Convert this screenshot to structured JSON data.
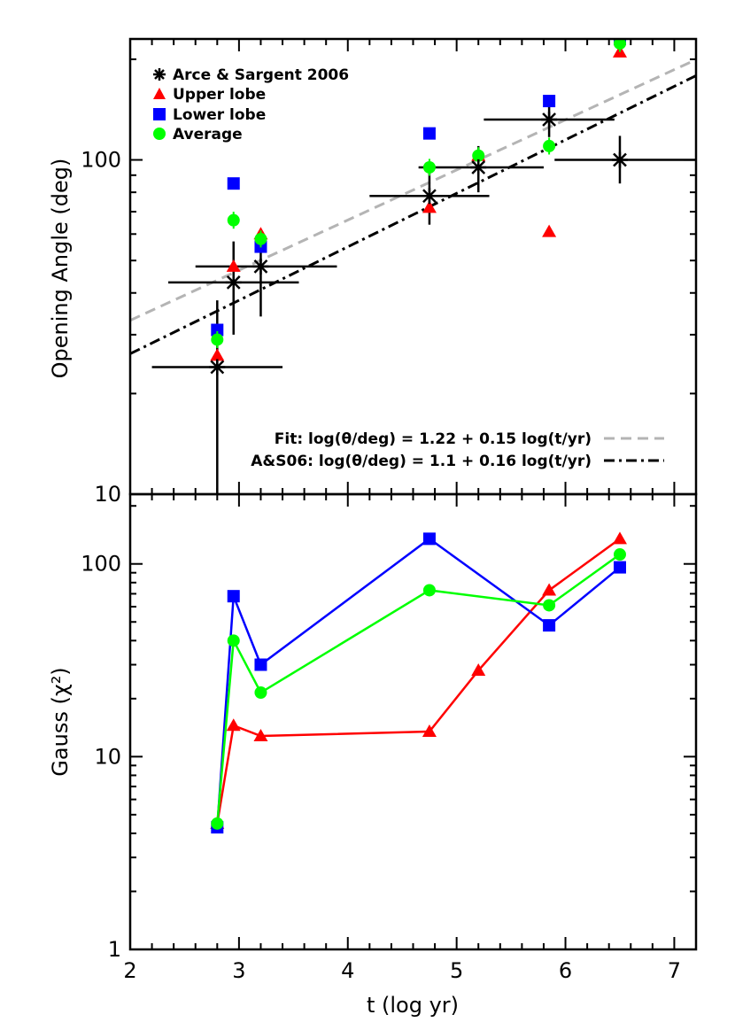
{
  "chart_data": [
    {
      "type": "scatter",
      "title": "",
      "xlabel": "",
      "ylabel": "Opening Angle (deg)",
      "xlim": [
        2,
        7.2
      ],
      "ylim": [
        10,
        230
      ],
      "yscale": "log",
      "ytick_labels": [
        "10",
        "100"
      ],
      "grid": false,
      "legend_position": "top-left",
      "colors": {
        "arce": "#000000",
        "upper": "#ff0000",
        "lower": "#0000ff",
        "average": "#00ff00",
        "fit": "#b4b4b4",
        "as06": "#000000"
      },
      "series": [
        {
          "name": "Arce & Sargent 2006",
          "marker": "asterisk",
          "points": [
            {
              "x": 2.8,
              "y": 24,
              "xerr": [
                2.2,
                3.4
              ],
              "yerr": [
                10,
                38
              ]
            },
            {
              "x": 2.95,
              "y": 43,
              "xerr": [
                2.35,
                3.55
              ],
              "yerr": [
                30,
                57
              ]
            },
            {
              "x": 3.2,
              "y": 48,
              "xerr": [
                2.6,
                3.9
              ],
              "yerr": [
                34,
                62
              ]
            },
            {
              "x": 4.75,
              "y": 78,
              "xerr": [
                4.2,
                5.3
              ],
              "yerr": [
                64,
                92
              ]
            },
            {
              "x": 5.2,
              "y": 95,
              "xerr": [
                4.65,
                5.8
              ],
              "yerr": [
                80,
                110
              ]
            },
            {
              "x": 5.85,
              "y": 132,
              "xerr": [
                5.25,
                6.45
              ],
              "yerr": [
                117,
                150
              ]
            },
            {
              "x": 6.5,
              "y": 100,
              "xerr": [
                5.9,
                7.2
              ],
              "yerr": [
                85,
                118
              ]
            }
          ]
        },
        {
          "name": "Upper lobe",
          "marker": "triangle",
          "x": [
            2.8,
            2.95,
            3.2,
            4.75,
            5.2,
            5.85,
            6.5
          ],
          "values": [
            26,
            48,
            60,
            72,
            103,
            61,
            210
          ]
        },
        {
          "name": "Lower lobe",
          "marker": "square",
          "x": [
            2.8,
            2.95,
            3.2,
            4.75,
            5.85,
            6.5
          ],
          "values": [
            31,
            85,
            55,
            120,
            150,
            230
          ]
        },
        {
          "name": "Average",
          "marker": "circle",
          "x": [
            2.8,
            2.95,
            3.2,
            4.75,
            5.2,
            5.85,
            6.5
          ],
          "values": [
            29,
            66,
            58,
            95,
            103,
            110,
            223
          ]
        }
      ],
      "fits": [
        {
          "label": "Fit: log(θ/deg) = 1.22 + 0.15 log(t/yr)",
          "intercept": 1.22,
          "slope": 0.15,
          "style": "dashed"
        },
        {
          "label": "A&S06: log(θ/deg) = 1.1 + 0.16 log(t/yr)",
          "intercept": 1.1,
          "slope": 0.16,
          "style": "dash-dot"
        }
      ]
    },
    {
      "type": "line",
      "title": "",
      "xlabel": "t (log yr)",
      "ylabel": "Gauss (χ²)",
      "xlim": [
        2,
        7.2
      ],
      "ylim": [
        1,
        230
      ],
      "yscale": "log",
      "xtick_labels": [
        "2",
        "3",
        "4",
        "5",
        "6",
        "7"
      ],
      "ytick_labels": [
        "1",
        "10",
        "100"
      ],
      "grid": false,
      "series": [
        {
          "name": "Upper lobe",
          "marker": "triangle",
          "x": [
            2.8,
            2.95,
            3.2,
            4.75,
            5.2,
            5.85,
            6.5
          ],
          "values": [
            4.5,
            14.5,
            12.8,
            13.5,
            28,
            73,
            135
          ]
        },
        {
          "name": "Lower lobe",
          "marker": "square",
          "x": [
            2.8,
            2.95,
            3.2,
            4.75,
            5.85,
            6.5
          ],
          "values": [
            4.3,
            68,
            30,
            135,
            48,
            96
          ]
        },
        {
          "name": "Average",
          "marker": "circle",
          "x": [
            2.8,
            2.95,
            3.2,
            4.75,
            5.85,
            6.5
          ],
          "values": [
            4.5,
            40,
            21.5,
            73,
            61,
            112
          ]
        }
      ]
    }
  ]
}
